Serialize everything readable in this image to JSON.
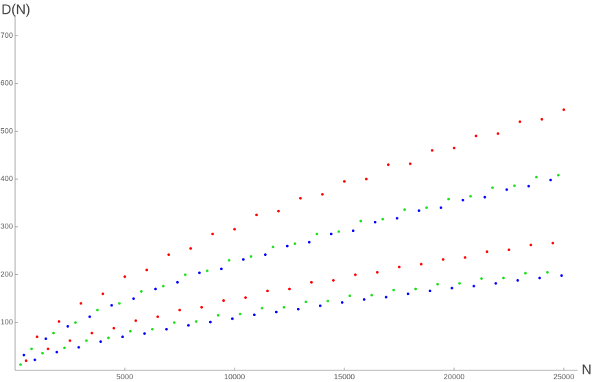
{
  "chart_data": {
    "type": "scatter",
    "xlabel": "N",
    "ylabel": "D(N)",
    "xlim": [
      0,
      25500
    ],
    "ylim": [
      0,
      740
    ],
    "xticks": [
      5000,
      10000,
      15000,
      20000,
      25000
    ],
    "yticks": [
      100,
      200,
      300,
      400,
      500,
      600,
      700
    ],
    "series": [
      {
        "color": "#ff0000",
        "x": [
          1000,
          2000,
          3000,
          4000,
          5000,
          6000,
          7000,
          8000,
          9000,
          10000,
          11000,
          12000,
          13000,
          14000,
          15000,
          16000,
          17000,
          18000,
          19000,
          20000,
          21000,
          22000,
          23000,
          24000,
          25000,
          500,
          1500,
          2500,
          3500,
          4500,
          5500,
          6500,
          7500,
          8500,
          9500,
          10500,
          11500,
          12500,
          13500,
          14500,
          15500,
          16500,
          17500,
          18500,
          19500,
          20500,
          21500,
          22500,
          23500,
          24500
        ],
        "values": [
          70,
          102,
          140,
          160,
          196,
          210,
          242,
          255,
          285,
          295,
          325,
          333,
          360,
          368,
          395,
          400,
          430,
          432,
          460,
          465,
          490,
          495,
          520,
          525,
          545,
          20,
          45,
          62,
          78,
          88,
          104,
          112,
          126,
          132,
          146,
          152,
          166,
          170,
          184,
          188,
          200,
          205,
          216,
          222,
          232,
          236,
          248,
          252,
          262,
          266
        ]
      },
      {
        "color": "#22e022",
        "x": [
          750,
          1750,
          2750,
          3750,
          4750,
          5750,
          6750,
          7750,
          8750,
          9750,
          10750,
          11750,
          12750,
          13750,
          14750,
          15750,
          16750,
          17750,
          18750,
          19750,
          20750,
          21750,
          22750,
          23750,
          24750,
          250,
          1250,
          2250,
          3250,
          4250,
          5250,
          6250,
          7250,
          8250,
          9250,
          10250,
          11250,
          12250,
          13250,
          14250,
          15250,
          16250,
          17250,
          18250,
          19250,
          20250,
          21250,
          22250,
          23250,
          24250
        ],
        "values": [
          45,
          78,
          100,
          126,
          140,
          165,
          176,
          200,
          208,
          230,
          238,
          258,
          265,
          285,
          290,
          312,
          316,
          336,
          340,
          358,
          364,
          382,
          386,
          404,
          408,
          12,
          36,
          47,
          62,
          68,
          82,
          86,
          100,
          102,
          115,
          118,
          130,
          132,
          143,
          145,
          156,
          157,
          168,
          170,
          180,
          182,
          192,
          193,
          203,
          205
        ]
      },
      {
        "color": "#0000ff",
        "x": [
          400,
          1400,
          2400,
          3400,
          4400,
          5400,
          6400,
          7400,
          8400,
          9400,
          10400,
          11400,
          12400,
          13400,
          14400,
          15400,
          16400,
          17400,
          18400,
          19400,
          20400,
          21400,
          22400,
          23400,
          24400,
          900,
          1900,
          2900,
          3900,
          4900,
          5900,
          6900,
          7900,
          8900,
          9900,
          10900,
          11900,
          12900,
          13900,
          14900,
          15900,
          16900,
          17900,
          18900,
          19900,
          20900,
          21900,
          22900,
          23900,
          24900
        ],
        "values": [
          32,
          66,
          92,
          112,
          136,
          150,
          170,
          184,
          204,
          212,
          232,
          242,
          260,
          268,
          285,
          292,
          310,
          318,
          334,
          340,
          356,
          362,
          378,
          385,
          398,
          22,
          38,
          48,
          60,
          70,
          77,
          86,
          94,
          101,
          108,
          116,
          122,
          128,
          135,
          142,
          148,
          153,
          160,
          166,
          172,
          176,
          182,
          188,
          193,
          198
        ]
      }
    ]
  }
}
